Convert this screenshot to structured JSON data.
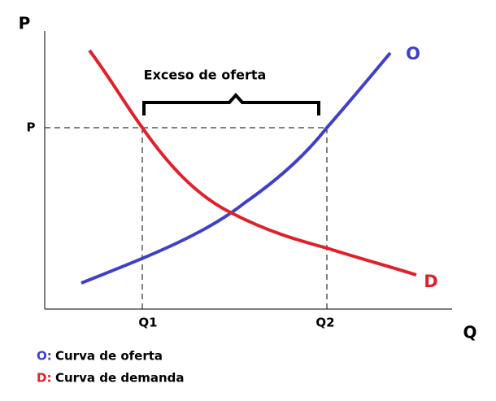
{
  "axes": {
    "y_label": "P",
    "x_label": "Q"
  },
  "price_label": "P",
  "quantities": [
    "Q1",
    "Q2"
  ],
  "curves": [
    {
      "label": "O"
    },
    {
      "label": "D"
    }
  ],
  "annotation": "Exceso de oferta",
  "legend": [
    {
      "key": "O:",
      "text": "Curva de oferta"
    },
    {
      "key": "D:",
      "text": "Curva de demanda"
    }
  ]
}
